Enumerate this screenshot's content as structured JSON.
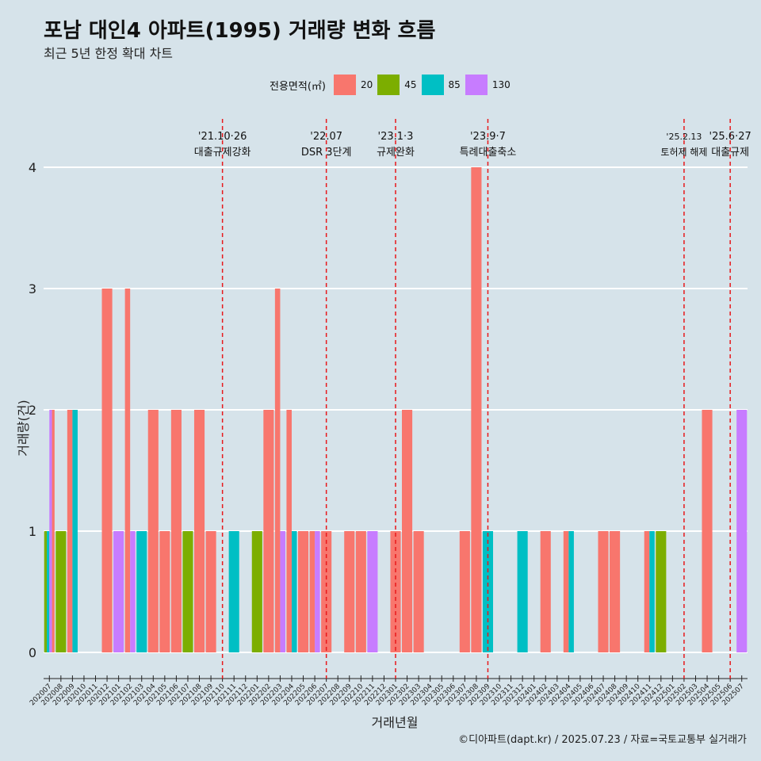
{
  "title": "포남 대인4 아파트(1995) 거래량 변화 흐름",
  "subtitle": "최근 5년 한정 확대 차트",
  "caption": "©디아파트(dapt.kr) / 2025.07.23 / 자료=국토교통부 실거래가",
  "legend_title": "전용면적(㎡)",
  "colors": {
    "20": "#f8766d",
    "45": "#7cae00",
    "85": "#00bfc4",
    "130": "#c77cff",
    "event": "#e8181b"
  },
  "chart_data": {
    "type": "bar",
    "xlabel": "거래년월",
    "ylabel": "거래량(건)",
    "ylim": [
      0,
      4
    ],
    "yticks": [
      0,
      1,
      2,
      3,
      4
    ],
    "categories": [
      "202007",
      "202008",
      "202009",
      "202010",
      "202011",
      "202012",
      "202101",
      "202102",
      "202103",
      "202104",
      "202105",
      "202106",
      "202107",
      "202108",
      "202109",
      "202110",
      "202111",
      "202112",
      "202201",
      "202202",
      "202203",
      "202204",
      "202205",
      "202206",
      "202207",
      "202208",
      "202209",
      "202210",
      "202211",
      "202212",
      "202301",
      "202302",
      "202303",
      "202304",
      "202305",
      "202306",
      "202307",
      "202308",
      "202309",
      "202310",
      "202311",
      "202312",
      "202401",
      "202402",
      "202403",
      "202404",
      "202405",
      "202406",
      "202407",
      "202408",
      "202409",
      "202410",
      "202411",
      "202412",
      "202501",
      "202502",
      "202503",
      "202504",
      "202505",
      "202506",
      "202507"
    ],
    "series_names": [
      "20",
      "45",
      "85",
      "130"
    ],
    "bars": [
      {
        "month": "202007",
        "area": "45",
        "value": 1
      },
      {
        "month": "202007",
        "area": "85",
        "value": 1
      },
      {
        "month": "202007",
        "area": "130",
        "value": 2
      },
      {
        "month": "202007",
        "area": "20",
        "value": 2
      },
      {
        "month": "202008",
        "area": "45",
        "value": 1
      },
      {
        "month": "202009",
        "area": "20",
        "value": 2
      },
      {
        "month": "202009",
        "area": "85",
        "value": 2
      },
      {
        "month": "202012",
        "area": "20",
        "value": 3
      },
      {
        "month": "202101",
        "area": "130",
        "value": 1
      },
      {
        "month": "202102",
        "area": "20",
        "value": 3
      },
      {
        "month": "202102",
        "area": "130",
        "value": 1
      },
      {
        "month": "202103",
        "area": "85",
        "value": 1
      },
      {
        "month": "202104",
        "area": "20",
        "value": 2
      },
      {
        "month": "202105",
        "area": "20",
        "value": 1
      },
      {
        "month": "202106",
        "area": "20",
        "value": 2
      },
      {
        "month": "202107",
        "area": "45",
        "value": 1
      },
      {
        "month": "202108",
        "area": "20",
        "value": 2
      },
      {
        "month": "202109",
        "area": "20",
        "value": 1
      },
      {
        "month": "202111",
        "area": "85",
        "value": 1
      },
      {
        "month": "202201",
        "area": "45",
        "value": 1
      },
      {
        "month": "202202",
        "area": "20",
        "value": 2
      },
      {
        "month": "202203",
        "area": "20",
        "value": 3
      },
      {
        "month": "202203",
        "area": "130",
        "value": 1
      },
      {
        "month": "202204",
        "area": "20",
        "value": 2
      },
      {
        "month": "202204",
        "area": "85",
        "value": 1
      },
      {
        "month": "202205",
        "area": "20",
        "value": 1
      },
      {
        "month": "202206",
        "area": "20",
        "value": 1
      },
      {
        "month": "202206",
        "area": "130",
        "value": 1
      },
      {
        "month": "202207",
        "area": "20",
        "value": 1
      },
      {
        "month": "202209",
        "area": "20",
        "value": 1
      },
      {
        "month": "202210",
        "area": "20",
        "value": 1
      },
      {
        "month": "202211",
        "area": "130",
        "value": 1
      },
      {
        "month": "202301",
        "area": "20",
        "value": 1
      },
      {
        "month": "202302",
        "area": "20",
        "value": 2
      },
      {
        "month": "202303",
        "area": "20",
        "value": 1
      },
      {
        "month": "202307",
        "area": "20",
        "value": 1
      },
      {
        "month": "202308",
        "area": "20",
        "value": 4
      },
      {
        "month": "202309",
        "area": "85",
        "value": 1
      },
      {
        "month": "202312",
        "area": "85",
        "value": 1
      },
      {
        "month": "202402",
        "area": "20",
        "value": 1
      },
      {
        "month": "202404",
        "area": "20",
        "value": 1
      },
      {
        "month": "202404",
        "area": "85",
        "value": 1
      },
      {
        "month": "202407",
        "area": "20",
        "value": 1
      },
      {
        "month": "202408",
        "area": "20",
        "value": 1
      },
      {
        "month": "202411",
        "area": "20",
        "value": 1
      },
      {
        "month": "202411",
        "area": "85",
        "value": 1
      },
      {
        "month": "202412",
        "area": "45",
        "value": 1
      },
      {
        "month": "202504",
        "area": "20",
        "value": 2
      },
      {
        "month": "202507",
        "area": "130",
        "value": 2
      }
    ],
    "events": [
      {
        "month": "202110",
        "date": "'21.10·26",
        "label": "대출규제강화"
      },
      {
        "month": "202207",
        "date": "'22.07",
        "label": "DSR 3단계"
      },
      {
        "month": "202301",
        "date": "'23.1·3",
        "label": "규제완화"
      },
      {
        "month": "202309",
        "date": "'23.9·7",
        "label": "특례대출축소"
      },
      {
        "month": "202502",
        "date": "'25.2.13",
        "label": "토허제 해제"
      },
      {
        "month": "202506",
        "date": "'25.6·27",
        "label": "대출규제"
      }
    ]
  }
}
